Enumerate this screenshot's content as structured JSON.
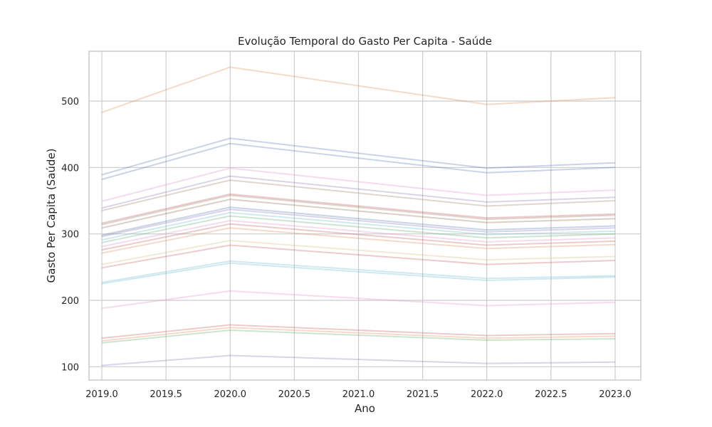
{
  "chart_data": {
    "type": "line",
    "title": "Evolução Temporal do Gasto Per Capita - Saúde",
    "xlabel": "Ano",
    "ylabel": "Gasto Per Capita (Saúde)",
    "xlim": [
      2018.9,
      2023.2
    ],
    "ylim": [
      80,
      575
    ],
    "x_ticks": [
      2019.0,
      2019.5,
      2020.0,
      2020.5,
      2021.0,
      2021.5,
      2022.0,
      2022.5,
      2023.0
    ],
    "x_tick_labels": [
      "2019.0",
      "2019.5",
      "2020.0",
      "2020.5",
      "2021.0",
      "2021.5",
      "2022.0",
      "2022.5",
      "2023.0"
    ],
    "y_ticks": [
      100,
      200,
      300,
      400,
      500
    ],
    "y_tick_labels": [
      "100",
      "200",
      "300",
      "400",
      "500"
    ],
    "grid": true,
    "legend": false,
    "x": [
      2019,
      2020,
      2022,
      2023
    ],
    "series": [
      {
        "color": "#dd8452",
        "values": [
          483,
          551,
          495,
          505
        ]
      },
      {
        "color": "#4c72b0",
        "values": [
          389,
          444,
          399,
          407
        ]
      },
      {
        "color": "#4c72b0",
        "values": [
          382,
          436,
          392,
          400
        ]
      },
      {
        "color": "#da8bc3",
        "values": [
          349,
          399,
          358,
          366
        ]
      },
      {
        "color": "#8172b3",
        "values": [
          339,
          387,
          348,
          355
        ]
      },
      {
        "color": "#937860",
        "values": [
          335,
          381,
          342,
          350
        ]
      },
      {
        "color": "#c44e52",
        "values": [
          316,
          360,
          324,
          330
        ]
      },
      {
        "color": "#937860",
        "values": [
          314,
          358,
          322,
          328
        ]
      },
      {
        "color": "#8c613c",
        "values": [
          309,
          352,
          317,
          323
        ]
      },
      {
        "color": "#4c72b0",
        "values": [
          298,
          340,
          306,
          312
        ]
      },
      {
        "color": "#8172b3",
        "values": [
          296,
          337,
          303,
          309
        ]
      },
      {
        "color": "#64b5cd",
        "values": [
          291,
          332,
          299,
          304
        ]
      },
      {
        "color": "#55a868",
        "values": [
          287,
          327,
          294,
          300
        ]
      },
      {
        "color": "#da8bc3",
        "values": [
          281,
          320,
          288,
          294
        ]
      },
      {
        "color": "#c44e52",
        "values": [
          276,
          315,
          283,
          289
        ]
      },
      {
        "color": "#dd8452",
        "values": [
          271,
          309,
          278,
          284
        ]
      },
      {
        "color": "#ccb974",
        "values": [
          254,
          290,
          261,
          266
        ]
      },
      {
        "color": "#c44e52",
        "values": [
          249,
          283,
          254,
          260
        ]
      },
      {
        "color": "#64b5cd",
        "values": [
          227,
          259,
          233,
          237
        ]
      },
      {
        "color": "#64b5cd",
        "values": [
          225,
          256,
          230,
          235
        ]
      },
      {
        "color": "#da8bc3",
        "values": [
          188,
          214,
          192,
          197
        ]
      },
      {
        "color": "#c44e52",
        "values": [
          143,
          163,
          147,
          150
        ]
      },
      {
        "color": "#dd8452",
        "values": [
          139,
          159,
          143,
          146
        ]
      },
      {
        "color": "#55a868",
        "values": [
          136,
          155,
          140,
          142
        ]
      },
      {
        "color": "#8172b3",
        "values": [
          102,
          117,
          105,
          107
        ]
      }
    ]
  }
}
